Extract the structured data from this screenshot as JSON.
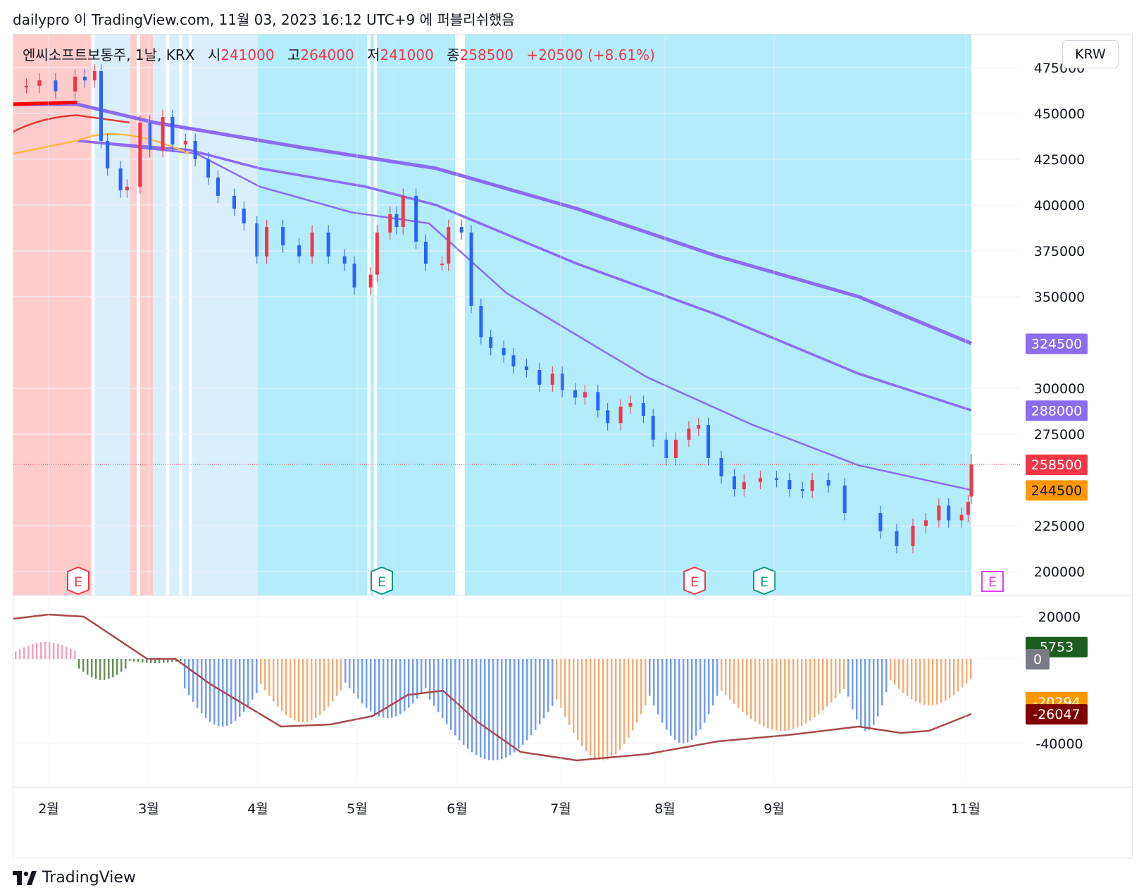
{
  "header": {
    "attribution": "dailypro 이 TradingView.com, 11월 03, 2023 16:12 UTC+9 에 퍼블리쉬했음"
  },
  "legend": {
    "symbol": "엔씨소프트보통주, 1날, KRX",
    "open_label": "시",
    "open": "241000",
    "high_label": "고",
    "high": "264000",
    "low_label": "저",
    "low": "241000",
    "close_label": "종",
    "close": "258500",
    "change": "+20500 (+8.61%)"
  },
  "currency": "KRW",
  "footer": {
    "brand": "TradingView"
  },
  "colors": {
    "up": "#f23645",
    "down": "#2962ff",
    "ma": "#8c6cf0",
    "bg_blue": "#b3ecfb",
    "bg_light": "#d9effd",
    "bg_red": "#ffcccc"
  },
  "chart_data": [
    {
      "type": "candlestick",
      "title": "",
      "y_ticks": [
        "475000",
        "450000",
        "425000",
        "400000",
        "375000",
        "350000",
        "300000",
        "275000",
        "225000",
        "200000"
      ],
      "ylim": [
        187000,
        493000
      ],
      "x_ticks": [
        "2월",
        "3월",
        "4월",
        "5월",
        "6월",
        "7월",
        "8월",
        "9월",
        "11월"
      ],
      "price_labels": [
        {
          "value": "324500",
          "color": "#8c6cf0"
        },
        {
          "value": "288000",
          "color": "#8c6cf0"
        },
        {
          "value": "258500",
          "color": "#f23645"
        },
        {
          "value": "244500",
          "color": "#ff9800"
        }
      ],
      "earnings_markers": [
        "E",
        "E",
        "E",
        "E",
        "E"
      ],
      "close_series": [
        {
          "x": "01-16",
          "close": 465000
        },
        {
          "x": "01-20",
          "close": 468000
        },
        {
          "x": "01-25",
          "close": 462000
        },
        {
          "x": "01-31",
          "close": 470000
        },
        {
          "x": "02-03",
          "close": 468000
        },
        {
          "x": "02-06",
          "close": 473000
        },
        {
          "x": "02-08",
          "close": 435000
        },
        {
          "x": "02-10",
          "close": 420000
        },
        {
          "x": "02-14",
          "close": 408000
        },
        {
          "x": "02-16",
          "close": 410000
        },
        {
          "x": "02-20",
          "close": 445000
        },
        {
          "x": "02-23",
          "close": 430000
        },
        {
          "x": "02-27",
          "close": 448000
        },
        {
          "x": "03-02",
          "close": 433000
        },
        {
          "x": "03-06",
          "close": 435000
        },
        {
          "x": "03-09",
          "close": 425000
        },
        {
          "x": "03-13",
          "close": 415000
        },
        {
          "x": "03-16",
          "close": 405000
        },
        {
          "x": "03-21",
          "close": 398000
        },
        {
          "x": "03-24",
          "close": 390000
        },
        {
          "x": "03-28",
          "close": 372000
        },
        {
          "x": "03-31",
          "close": 388000
        },
        {
          "x": "04-05",
          "close": 378000
        },
        {
          "x": "04-10",
          "close": 372000
        },
        {
          "x": "04-14",
          "close": 385000
        },
        {
          "x": "04-19",
          "close": 372000
        },
        {
          "x": "04-24",
          "close": 368000
        },
        {
          "x": "04-27",
          "close": 355000
        },
        {
          "x": "05-02",
          "close": 362000
        },
        {
          "x": "05-04",
          "close": 385000
        },
        {
          "x": "05-08",
          "close": 395000
        },
        {
          "x": "05-10",
          "close": 388000
        },
        {
          "x": "05-12",
          "close": 405000
        },
        {
          "x": "05-16",
          "close": 380000
        },
        {
          "x": "05-19",
          "close": 368000
        },
        {
          "x": "05-24",
          "close": 368000
        },
        {
          "x": "05-26",
          "close": 388000
        },
        {
          "x": "05-30",
          "close": 385000
        },
        {
          "x": "06-02",
          "close": 345000
        },
        {
          "x": "06-05",
          "close": 328000
        },
        {
          "x": "06-08",
          "close": 322000
        },
        {
          "x": "06-12",
          "close": 318000
        },
        {
          "x": "06-15",
          "close": 312000
        },
        {
          "x": "06-19",
          "close": 310000
        },
        {
          "x": "06-23",
          "close": 302000
        },
        {
          "x": "06-27",
          "close": 308000
        },
        {
          "x": "06-30",
          "close": 299000
        },
        {
          "x": "07-04",
          "close": 295000
        },
        {
          "x": "07-07",
          "close": 298000
        },
        {
          "x": "07-11",
          "close": 288000
        },
        {
          "x": "07-14",
          "close": 281000
        },
        {
          "x": "07-18",
          "close": 290000
        },
        {
          "x": "07-21",
          "close": 292000
        },
        {
          "x": "07-25",
          "close": 285000
        },
        {
          "x": "07-28",
          "close": 272000
        },
        {
          "x": "08-01",
          "close": 262000
        },
        {
          "x": "08-04",
          "close": 272000
        },
        {
          "x": "08-08",
          "close": 278000
        },
        {
          "x": "08-11",
          "close": 280000
        },
        {
          "x": "08-14",
          "close": 262000
        },
        {
          "x": "08-18",
          "close": 252000
        },
        {
          "x": "08-22",
          "close": 245000
        },
        {
          "x": "08-25",
          "close": 249000
        },
        {
          "x": "08-30",
          "close": 251000
        },
        {
          "x": "09-04",
          "close": 250000
        },
        {
          "x": "09-08",
          "close": 245000
        },
        {
          "x": "09-12",
          "close": 244000
        },
        {
          "x": "09-15",
          "close": 250000
        },
        {
          "x": "09-20",
          "close": 247000
        },
        {
          "x": "09-25",
          "close": 232000
        },
        {
          "x": "10-06",
          "close": 222000
        },
        {
          "x": "10-11",
          "close": 214000
        },
        {
          "x": "10-16",
          "close": 225000
        },
        {
          "x": "10-20",
          "close": 228000
        },
        {
          "x": "10-24",
          "close": 236000
        },
        {
          "x": "10-27",
          "close": 228000
        },
        {
          "x": "10-31",
          "close": 231000
        },
        {
          "x": "11-02",
          "close": 238000
        },
        {
          "x": "11-03",
          "close": 258500
        }
      ],
      "moving_averages": [
        {
          "name": "",
          "last": 324500,
          "width": 5
        },
        {
          "name": "",
          "last": 288000,
          "width": 3.5
        },
        {
          "name": "",
          "last": 244500,
          "width": 2.5
        }
      ]
    },
    {
      "type": "bar",
      "title": "",
      "y_ticks": [
        "20000",
        "0",
        "-40000"
      ],
      "ylim": [
        -58000,
        30000
      ],
      "value_labels": [
        {
          "value": "5753",
          "color": "#1b5e20"
        },
        {
          "value": "0",
          "color": "#787b86"
        },
        {
          "value": "-20294",
          "color": "#ff9800"
        },
        {
          "value": "-26047",
          "color": "#7f0000"
        }
      ]
    }
  ]
}
